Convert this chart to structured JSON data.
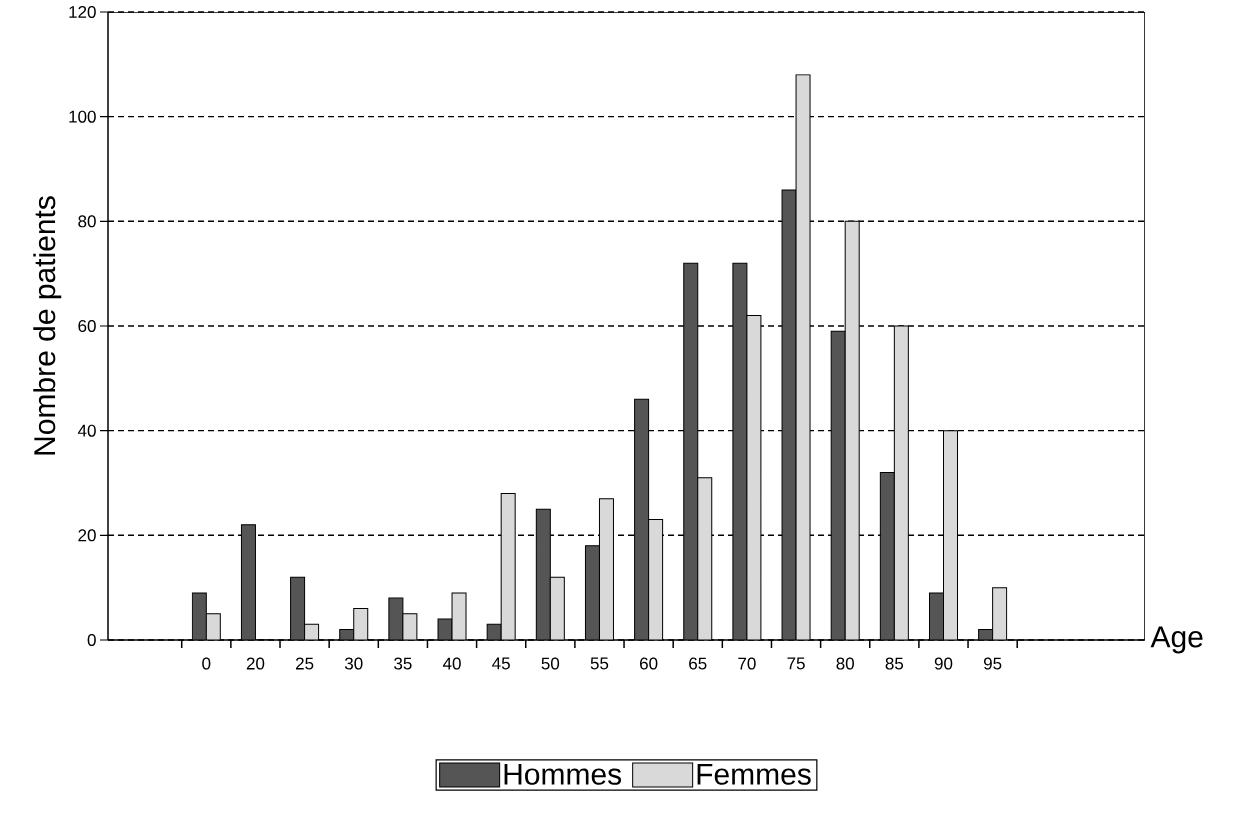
{
  "chart_data": {
    "type": "bar",
    "xlabel": "Age",
    "ylabel": "Nombre de patients",
    "categories": [
      "0",
      "20",
      "25",
      "30",
      "35",
      "40",
      "45",
      "50",
      "55",
      "60",
      "65",
      "70",
      "75",
      "80",
      "85",
      "90",
      "95"
    ],
    "series": [
      {
        "name": "Hommes",
        "color": "#555555",
        "values": [
          9,
          22,
          12,
          2,
          8,
          4,
          3,
          25,
          18,
          46,
          72,
          72,
          86,
          59,
          32,
          9,
          2
        ]
      },
      {
        "name": "Femmes",
        "color": "#d9d9d9",
        "values": [
          5,
          0,
          3,
          6,
          5,
          9,
          28,
          12,
          27,
          23,
          31,
          62,
          108,
          80,
          60,
          40,
          10
        ]
      }
    ],
    "ylim": [
      0,
      120
    ],
    "yticks": [
      0,
      20,
      40,
      60,
      80,
      100,
      120
    ],
    "grid": "y",
    "legend": "bottom"
  }
}
